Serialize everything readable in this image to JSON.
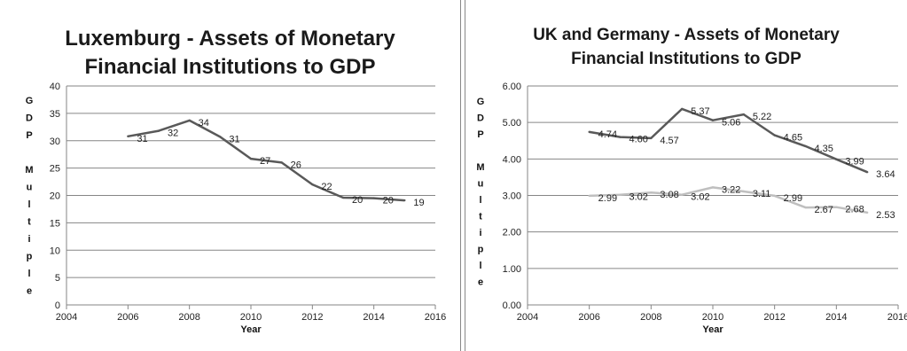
{
  "chart_data": [
    {
      "type": "line",
      "title": "Luxemburg - Assets of Monetary\nFinancial Institutions to GDP",
      "xlabel": "Year",
      "ylabel": "GDP Multiple",
      "xlim": [
        2004,
        2016
      ],
      "ylim": [
        0,
        40
      ],
      "xticks": [
        "2004",
        "2006",
        "2008",
        "2010",
        "2012",
        "2014",
        "2016"
      ],
      "yticks": [
        "0",
        "5",
        "10",
        "15",
        "20",
        "25",
        "30",
        "35",
        "40"
      ],
      "grid": true,
      "series": [
        {
          "color": "#595959",
          "x": [
            2006,
            2007,
            2008,
            2009,
            2010,
            2011,
            2012,
            2013,
            2014,
            2015
          ],
          "y": [
            30.8,
            31.8,
            33.7,
            30.7,
            26.7,
            26.0,
            22.0,
            19.6,
            19.5,
            19.1
          ],
          "labels": [
            "31",
            "32",
            "34",
            "31",
            "27",
            "26",
            "22",
            "20",
            "20",
            "19"
          ]
        }
      ]
    },
    {
      "type": "line",
      "title": "UK  and Germany - Assets of Monetary\nFinancial Institutions to GDP",
      "xlabel": "Year",
      "ylabel": "GDP Multiple",
      "xlim": [
        2004,
        2016
      ],
      "ylim": [
        0,
        6
      ],
      "xticks": [
        "2004",
        "2006",
        "2008",
        "2010",
        "2012",
        "2014",
        "2016"
      ],
      "yticks": [
        "0.00",
        "1.00",
        "2.00",
        "3.00",
        "4.00",
        "5.00",
        "6.00"
      ],
      "grid": true,
      "series": [
        {
          "color": "#595959",
          "x": [
            2006,
            2007,
            2008,
            2009,
            2010,
            2011,
            2012,
            2013,
            2014,
            2015
          ],
          "y": [
            4.74,
            4.6,
            4.57,
            5.37,
            5.06,
            5.22,
            4.65,
            4.35,
            3.99,
            3.64
          ],
          "labels": [
            "4.74",
            "4.60",
            "4.57",
            "5.37",
            "5.06",
            "5.22",
            "4.65",
            "4.35",
            "3.99",
            "3.64"
          ]
        },
        {
          "color": "#bfbfbf",
          "x": [
            2006,
            2007,
            2008,
            2009,
            2010,
            2011,
            2012,
            2013,
            2014,
            2015
          ],
          "y": [
            2.99,
            3.02,
            3.08,
            3.02,
            3.22,
            3.11,
            2.99,
            2.67,
            2.68,
            2.53
          ],
          "labels": [
            "2.99",
            "3.02",
            "3.08",
            "3.02",
            "3.22",
            "3.11",
            "2.99",
            "2.67",
            "2.68",
            "2.53"
          ]
        }
      ]
    }
  ]
}
